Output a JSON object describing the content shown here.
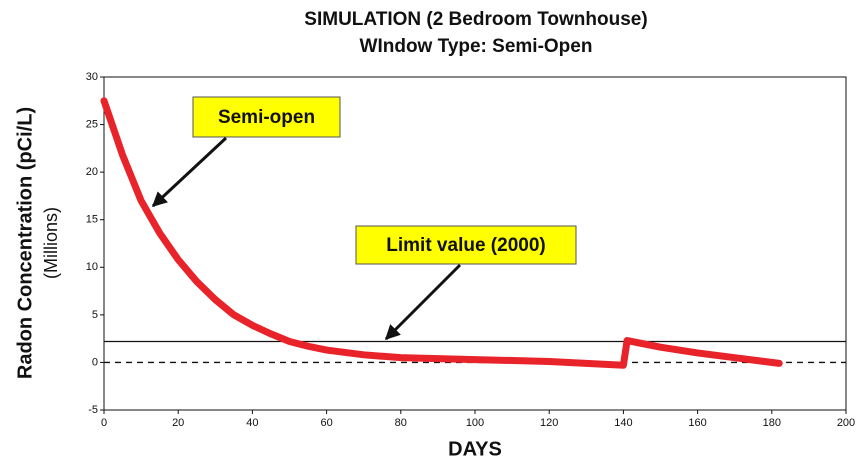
{
  "chart_data": {
    "type": "line",
    "title": "SIMULATION (2 Bedroom Townhouse)",
    "subtitle": "WIndow Type: Semi-Open",
    "x_label": "DAYS",
    "y_label": "Radon Concentration (pCi/L)",
    "y_label_sub": "(Millions)",
    "x": [
      0,
      5,
      10,
      15,
      20,
      25,
      30,
      35,
      40,
      45,
      50,
      55,
      60,
      70,
      80,
      100,
      120,
      140,
      141,
      150,
      160,
      170,
      182
    ],
    "series": [
      {
        "color": "#e8232a",
        "values": [
          27.5,
          21.8,
          17.0,
          13.6,
          10.8,
          8.5,
          6.6,
          5.0,
          3.9,
          3.0,
          2.2,
          1.7,
          1.3,
          0.8,
          0.5,
          0.3,
          0.1,
          -0.3,
          2.3,
          1.6,
          1.0,
          0.5,
          -0.1
        ]
      }
    ],
    "reference_lines": [
      {
        "value": 2.2,
        "style": "solid"
      },
      {
        "value": 0,
        "style": "dashed"
      }
    ],
    "annotations": [
      {
        "text": "Semi-open"
      },
      {
        "text": "Limit value (2000)"
      }
    ],
    "annotation_color": "#ffff00",
    "xlim": [
      0,
      200
    ],
    "xticks": [
      0,
      20,
      40,
      60,
      80,
      100,
      120,
      140,
      160,
      180,
      200
    ],
    "ylim": [
      -5,
      30
    ],
    "yticks": [
      -5,
      0,
      5,
      10,
      15,
      20,
      25,
      30
    ]
  }
}
